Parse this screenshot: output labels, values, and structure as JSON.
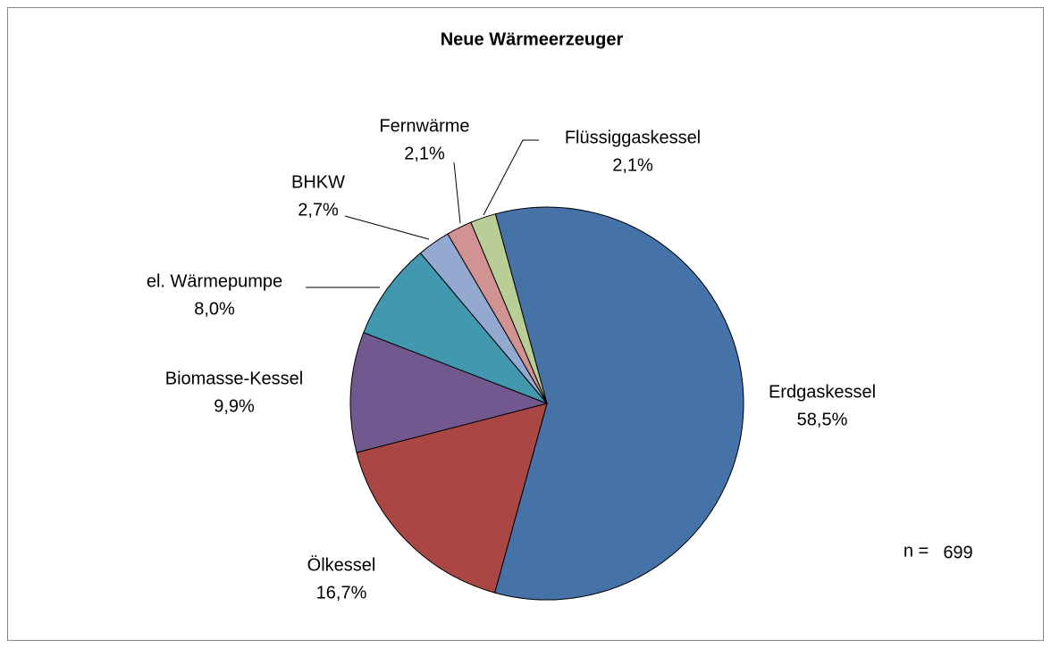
{
  "chart_data": {
    "type": "pie",
    "title": "Neue Wärmeerzeuger",
    "categories": [
      "Erdgaskessel",
      "Ölkessel",
      "Biomasse-Kessel",
      "el. Wärmepumpe",
      "BHKW",
      "Fernwärme",
      "Flüssiggaskessel"
    ],
    "values": [
      58.5,
      16.7,
      9.9,
      8.0,
      2.7,
      2.1,
      2.1
    ],
    "value_labels": [
      "58,5%",
      "16,7%",
      "9,9%",
      "8,0%",
      "2,7%",
      "2,1%",
      "2,1%"
    ],
    "colors": [
      "#4572a7",
      "#aa4643",
      "#71588f",
      "#4198af",
      "#93a9cf",
      "#d19392",
      "#b9cd96"
    ],
    "annotation": {
      "label": "n =",
      "value": 699
    }
  }
}
